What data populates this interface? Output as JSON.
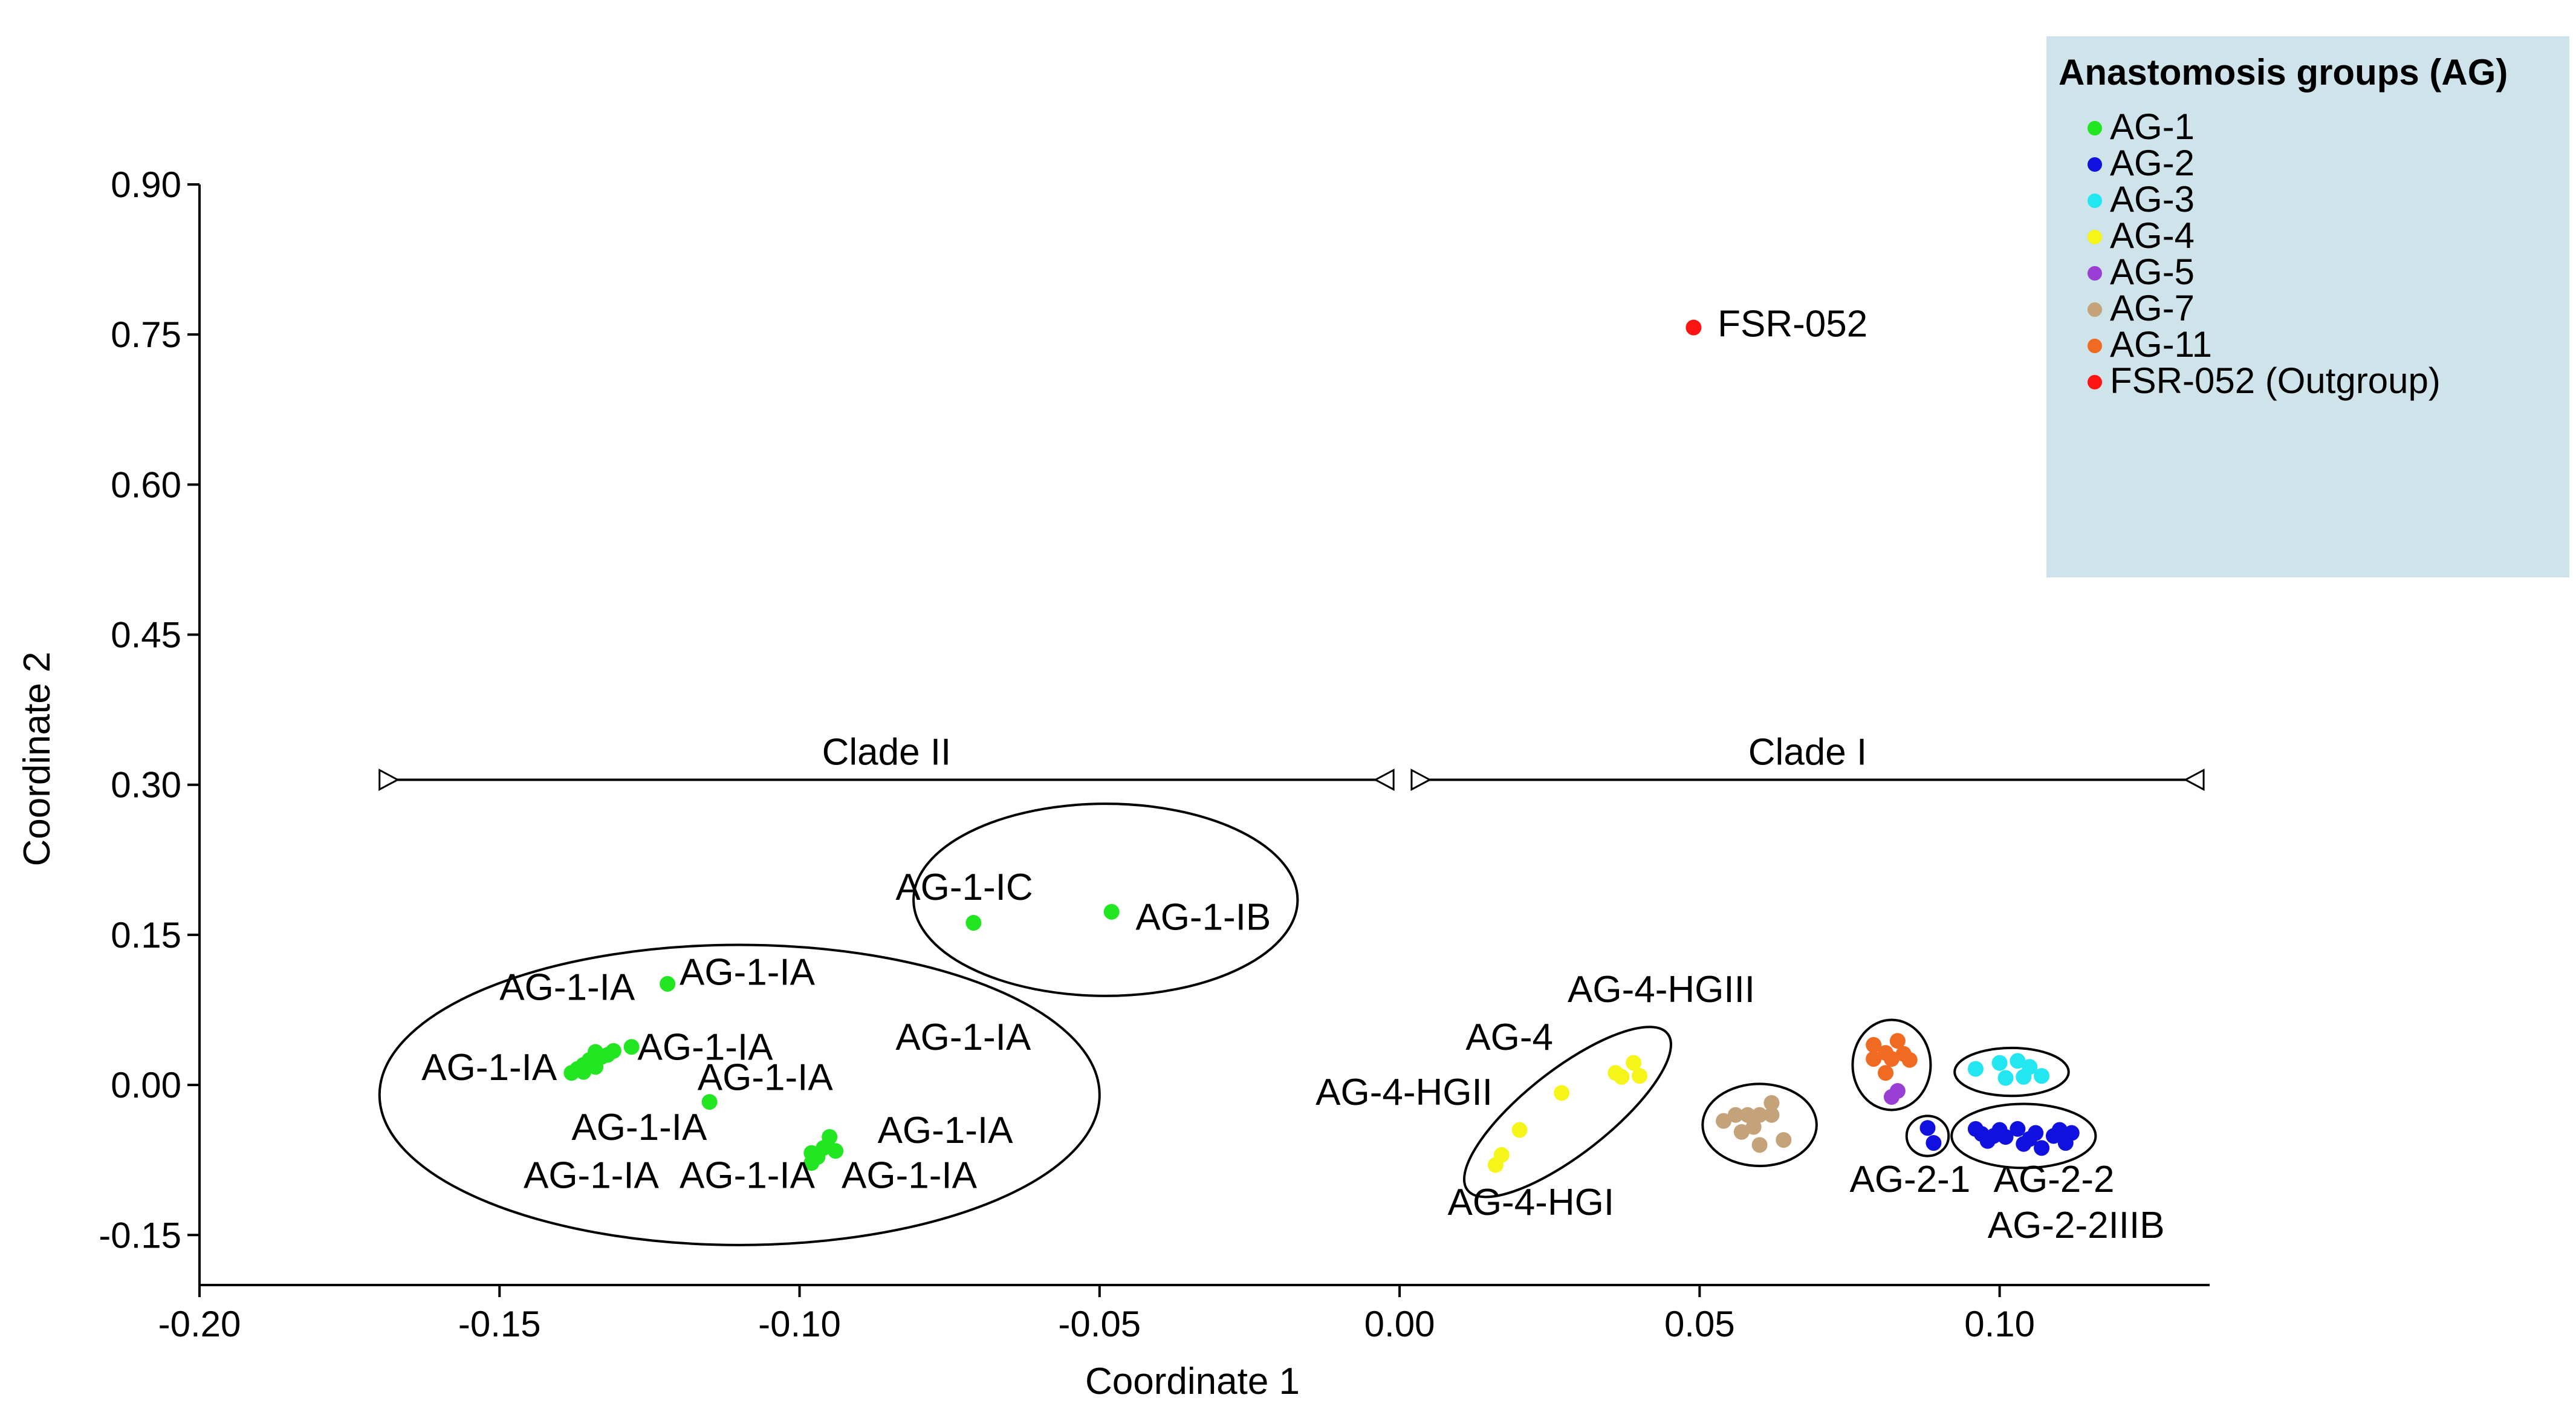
{
  "chart_data": {
    "type": "scatter",
    "title": "",
    "xlabel": "Coordinate 1",
    "ylabel": "Coordinate 2",
    "xlim": [
      -0.2,
      0.135
    ],
    "ylim": [
      -0.2,
      0.9
    ],
    "xticks": [
      -0.2,
      -0.15,
      -0.1,
      -0.05,
      0.0,
      0.05,
      0.1
    ],
    "xtick_labels": [
      "-0.20",
      "-0.15",
      "-0.10",
      "-0.05",
      "0.00",
      "0.05",
      "0.10"
    ],
    "yticks": [
      0.9,
      0.75,
      0.6,
      0.45,
      0.3,
      0.15,
      0.0,
      -0.15
    ],
    "ytick_labels": [
      "0.90",
      "0.75",
      "0.60",
      "0.45",
      "0.30",
      "0.15",
      "0.00",
      "-0.15"
    ],
    "legend": {
      "title": "Anastomosis groups (AG)",
      "position": "top-right",
      "entries": [
        {
          "name": "AG-1",
          "color": "#22e622"
        },
        {
          "name": "AG-2",
          "color": "#1010e0"
        },
        {
          "name": "AG-3",
          "color": "#22e6f0"
        },
        {
          "name": "AG-4",
          "color": "#f5f51a"
        },
        {
          "name": "AG-5",
          "color": "#9a3fd6"
        },
        {
          "name": "AG-7",
          "color": "#c4a27a"
        },
        {
          "name": "AG-11",
          "color": "#f06a22"
        },
        {
          "name": "FSR-052 (Outgroup)",
          "color": "#ff1414"
        }
      ]
    },
    "series": [
      {
        "name": "AG-1",
        "color": "#22e622",
        "points": [
          [
            -0.071,
            0.162
          ],
          [
            -0.048,
            0.173
          ],
          [
            -0.122,
            0.101
          ],
          [
            -0.128,
            0.038
          ],
          [
            -0.115,
            -0.017
          ],
          [
            -0.134,
            0.033
          ],
          [
            -0.133,
            0.028
          ],
          [
            -0.135,
            0.025
          ],
          [
            -0.136,
            0.02
          ],
          [
            -0.137,
            0.016
          ],
          [
            -0.138,
            0.012
          ],
          [
            -0.132,
            0.03
          ],
          [
            -0.134,
            0.018
          ],
          [
            -0.131,
            0.034
          ],
          [
            -0.136,
            0.013
          ],
          [
            -0.095,
            -0.052
          ],
          [
            -0.096,
            -0.063
          ],
          [
            -0.098,
            -0.068
          ],
          [
            -0.094,
            -0.066
          ],
          [
            -0.097,
            -0.072
          ],
          [
            -0.098,
            -0.078
          ]
        ]
      },
      {
        "name": "AG-2",
        "color": "#1010e0",
        "points": [
          [
            0.088,
            -0.043
          ],
          [
            0.089,
            -0.058
          ],
          [
            0.096,
            -0.044
          ],
          [
            0.097,
            -0.049
          ],
          [
            0.098,
            -0.056
          ],
          [
            0.1,
            -0.045
          ],
          [
            0.101,
            -0.052
          ],
          [
            0.103,
            -0.044
          ],
          [
            0.104,
            -0.059
          ],
          [
            0.106,
            -0.048
          ],
          [
            0.107,
            -0.063
          ],
          [
            0.109,
            -0.051
          ],
          [
            0.11,
            -0.045
          ],
          [
            0.111,
            -0.058
          ],
          [
            0.112,
            -0.048
          ],
          [
            0.099,
            -0.051
          ],
          [
            0.105,
            -0.054
          ]
        ]
      },
      {
        "name": "AG-3",
        "color": "#22e6f0",
        "points": [
          [
            0.096,
            0.016
          ],
          [
            0.1,
            0.022
          ],
          [
            0.103,
            0.024
          ],
          [
            0.105,
            0.018
          ],
          [
            0.101,
            0.007
          ],
          [
            0.104,
            0.008
          ],
          [
            0.107,
            0.009
          ]
        ]
      },
      {
        "name": "AG-4",
        "color": "#f5f51a",
        "points": [
          [
            0.016,
            -0.08
          ],
          [
            0.017,
            -0.07
          ],
          [
            0.02,
            -0.045
          ],
          [
            0.027,
            -0.008
          ],
          [
            0.036,
            0.012
          ],
          [
            0.037,
            0.008
          ],
          [
            0.039,
            0.022
          ],
          [
            0.04,
            0.009
          ]
        ]
      },
      {
        "name": "AG-5",
        "color": "#9a3fd6",
        "points": [
          [
            0.082,
            -0.012
          ],
          [
            0.083,
            -0.006
          ]
        ]
      },
      {
        "name": "AG-7",
        "color": "#c4a27a",
        "points": [
          [
            0.054,
            -0.036
          ],
          [
            0.056,
            -0.03
          ],
          [
            0.057,
            -0.047
          ],
          [
            0.058,
            -0.03
          ],
          [
            0.059,
            -0.042
          ],
          [
            0.06,
            -0.03
          ],
          [
            0.06,
            -0.06
          ],
          [
            0.062,
            -0.03
          ],
          [
            0.062,
            -0.018
          ],
          [
            0.064,
            -0.055
          ]
        ]
      },
      {
        "name": "AG-11",
        "color": "#f06a22",
        "points": [
          [
            0.079,
            0.04
          ],
          [
            0.079,
            0.026
          ],
          [
            0.081,
            0.032
          ],
          [
            0.082,
            0.026
          ],
          [
            0.083,
            0.044
          ],
          [
            0.084,
            0.031
          ],
          [
            0.081,
            0.012
          ],
          [
            0.085,
            0.025
          ]
        ]
      },
      {
        "name": "FSR-052 (Outgroup)",
        "color": "#ff1414",
        "points": [
          [
            0.049,
            0.757
          ]
        ]
      }
    ],
    "point_labels": [
      {
        "text": "AG-1-IC",
        "x": -0.084,
        "y": 0.185
      },
      {
        "text": "AG-1-IB",
        "x": -0.044,
        "y": 0.155
      },
      {
        "text": "AG-1-IA",
        "x": -0.15,
        "y": 0.085
      },
      {
        "text": "AG-1-IA",
        "x": -0.12,
        "y": 0.1
      },
      {
        "text": "AG-1-IA",
        "x": -0.127,
        "y": 0.025
      },
      {
        "text": "AG-1-IA",
        "x": -0.084,
        "y": 0.035
      },
      {
        "text": "AG-1-IA",
        "x": -0.163,
        "y": 0.005
      },
      {
        "text": "AG-1-IA",
        "x": -0.117,
        "y": -0.005
      },
      {
        "text": "AG-1-IA",
        "x": -0.138,
        "y": -0.055
      },
      {
        "text": "AG-1-IA",
        "x": -0.087,
        "y": -0.058
      },
      {
        "text": "AG-1-IA",
        "x": -0.146,
        "y": -0.103
      },
      {
        "text": "AG-1-IA",
        "x": -0.12,
        "y": -0.103
      },
      {
        "text": "AG-1-IA",
        "x": -0.093,
        "y": -0.103
      },
      {
        "text": "AG-4-HGIII",
        "x": 0.028,
        "y": 0.083
      },
      {
        "text": "AG-4",
        "x": 0.011,
        "y": 0.035
      },
      {
        "text": "AG-4-HGII",
        "x": -0.014,
        "y": -0.02
      },
      {
        "text": "AG-4-HGI",
        "x": 0.008,
        "y": -0.13
      },
      {
        "text": "AG-2-1",
        "x": 0.075,
        "y": -0.107
      },
      {
        "text": "AG-2-2",
        "x": 0.099,
        "y": -0.107
      },
      {
        "text": "AG-2-2IIIB",
        "x": 0.098,
        "y": -0.153
      }
    ],
    "outgroup_label": {
      "text": "FSR-052",
      "x": 0.053,
      "y": 0.76
    },
    "clades": [
      {
        "label": "Clade II",
        "x_start": -0.17,
        "x_end": -0.001,
        "y": 0.305
      },
      {
        "label": "Clade I",
        "x_start": 0.002,
        "x_end": 0.134,
        "y": 0.305
      }
    ],
    "ellipses": [
      {
        "name": "AG-1-IA cluster",
        "cx": -0.11,
        "cy": -0.01,
        "rx": 0.06,
        "ry": 0.15
      },
      {
        "name": "AG-1-IB/IC cluster",
        "cx": -0.049,
        "cy": 0.185,
        "rx": 0.032,
        "ry": 0.096
      },
      {
        "name": "AG-4 cluster",
        "cx": 0.028,
        "cy": -0.027,
        "rx": 0.024,
        "ry": 0.12,
        "rotate": 58
      },
      {
        "name": "AG-7 cluster",
        "cx": 0.06,
        "cy": -0.04,
        "rx": 0.0095,
        "ry": 0.041
      },
      {
        "name": "AG-11/AG-5 cluster",
        "cx": 0.082,
        "cy": 0.02,
        "rx": 0.0065,
        "ry": 0.045
      },
      {
        "name": "AG-3 cluster",
        "cx": 0.102,
        "cy": 0.013,
        "rx": 0.0095,
        "ry": 0.024
      },
      {
        "name": "AG-2-1 cluster",
        "cx": 0.088,
        "cy": -0.051,
        "rx": 0.0035,
        "ry": 0.02
      },
      {
        "name": "AG-2-2 cluster",
        "cx": 0.104,
        "cy": -0.051,
        "rx": 0.012,
        "ry": 0.032
      }
    ]
  }
}
